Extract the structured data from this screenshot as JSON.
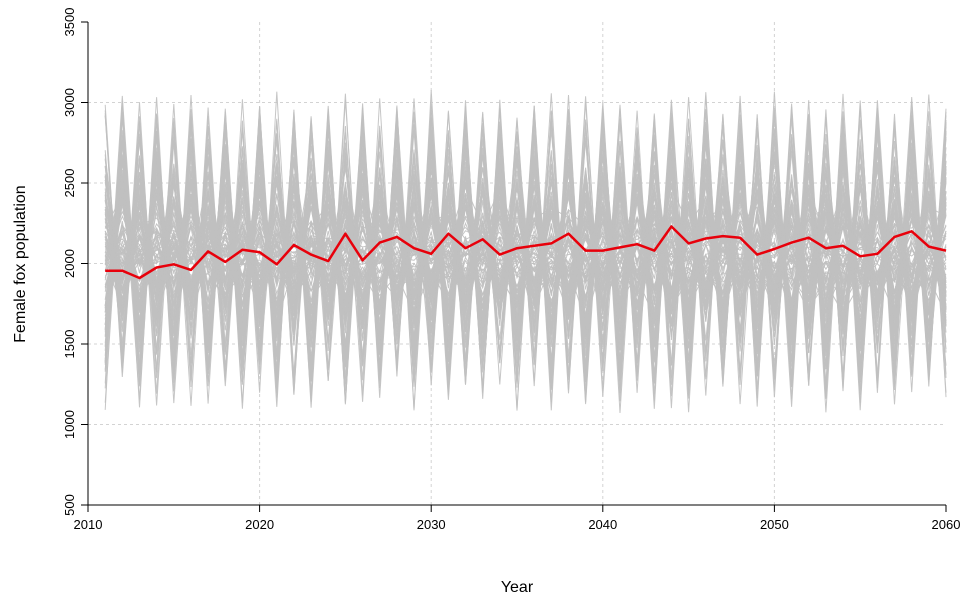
{
  "chart_data": {
    "type": "line",
    "title": "",
    "xlabel": "Year",
    "ylabel": "Female fox population",
    "xlim": [
      2010,
      2060
    ],
    "ylim": [
      500,
      3500
    ],
    "xticks": [
      2010,
      2020,
      2030,
      2040,
      2050,
      2060
    ],
    "yticks": [
      500,
      1000,
      1500,
      2000,
      2500,
      3000,
      3500
    ],
    "grid": true,
    "colors": {
      "simulations": "#c0c0c0",
      "mean": "#e8000b",
      "grid": "#d3d3d3"
    },
    "simulation_envelope": {
      "x_range": [
        2011,
        2060
      ],
      "approx_min": 950,
      "approx_max": 3250,
      "typical_low": 1200,
      "typical_high": 3000
    },
    "series": [
      {
        "role": "mean",
        "x": [
          2011,
          2012,
          2013,
          2014,
          2015,
          2016,
          2017,
          2018,
          2019,
          2020,
          2021,
          2022,
          2023,
          2024,
          2025,
          2026,
          2027,
          2028,
          2029,
          2030,
          2031,
          2032,
          2033,
          2034,
          2035,
          2036,
          2037,
          2038,
          2039,
          2040,
          2041,
          2042,
          2043,
          2044,
          2045,
          2046,
          2047,
          2048,
          2049,
          2050,
          2051,
          2052,
          2053,
          2054,
          2055,
          2056,
          2057,
          2058,
          2059,
          2060
        ],
        "y": [
          1955,
          1955,
          1910,
          1975,
          1995,
          1960,
          2075,
          2010,
          2085,
          2070,
          1995,
          2115,
          2055,
          2015,
          2185,
          2020,
          2130,
          2165,
          2095,
          2060,
          2185,
          2095,
          2150,
          2055,
          2095,
          2110,
          2125,
          2185,
          2080,
          2080,
          2100,
          2120,
          2080,
          2230,
          2125,
          2155,
          2170,
          2160,
          2055,
          2090,
          2130,
          2160,
          2095,
          2110,
          2045,
          2060,
          2165,
          2200,
          2105,
          2080
        ]
      }
    ]
  }
}
